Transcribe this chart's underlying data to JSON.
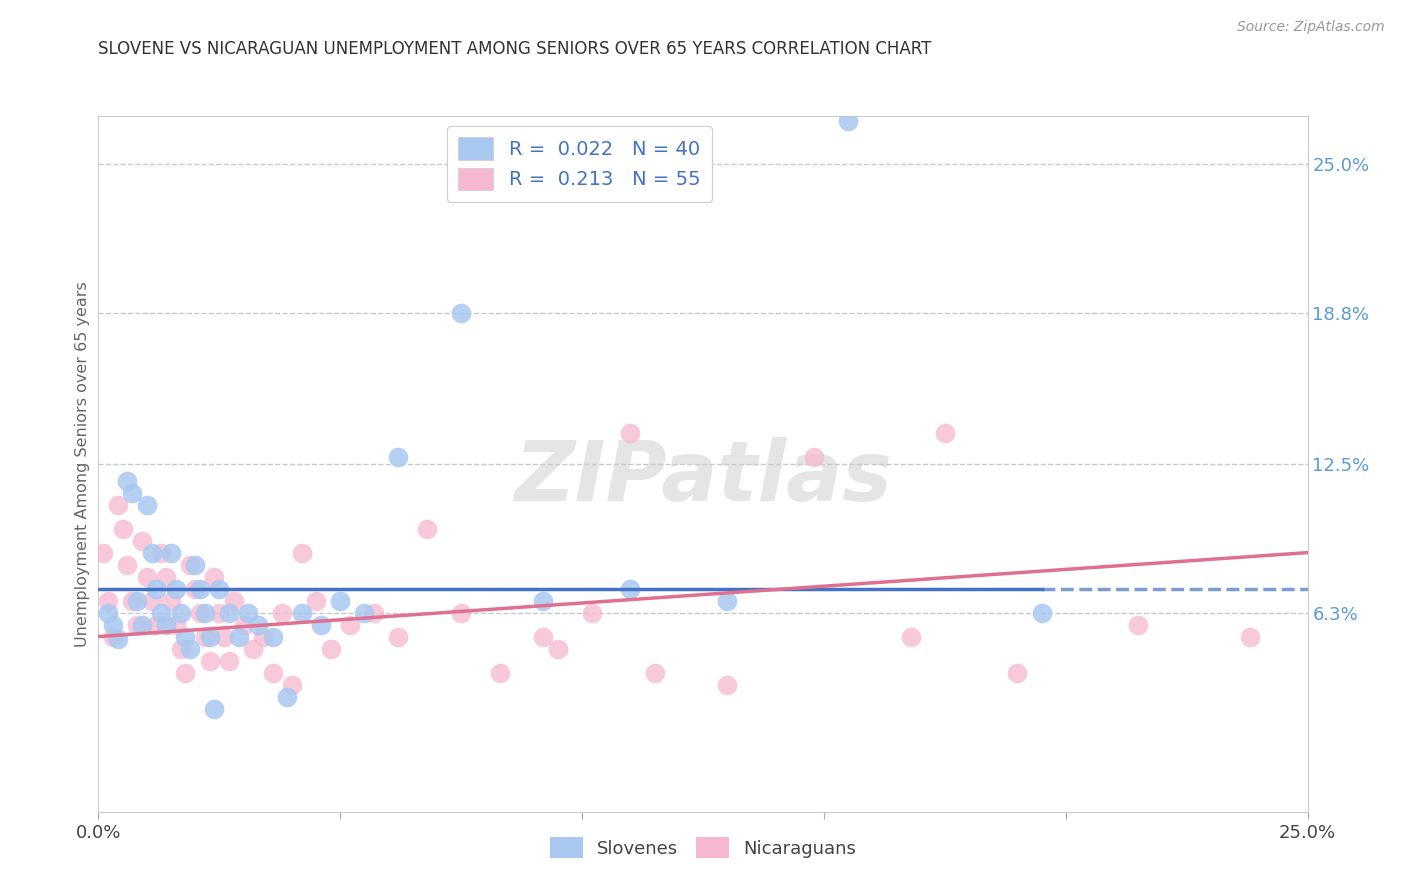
{
  "title": "SLOVENE VS NICARAGUAN UNEMPLOYMENT AMONG SENIORS OVER 65 YEARS CORRELATION CHART",
  "source": "Source: ZipAtlas.com",
  "ylabel": "Unemployment Among Seniors over 65 years",
  "xlim": [
    0.0,
    0.25
  ],
  "ylim": [
    -0.02,
    0.27
  ],
  "ytick_labels_right": [
    "25.0%",
    "18.8%",
    "12.5%",
    "6.3%"
  ],
  "ytick_values_right": [
    0.25,
    0.188,
    0.125,
    0.063
  ],
  "slovene_color": "#a8c8f0",
  "nicaraguan_color": "#f5b8d0",
  "slovene_R": 0.022,
  "slovene_N": 40,
  "nicaraguan_R": 0.213,
  "nicaraguan_N": 55,
  "legend_color_slovene": "#a8c8f0",
  "legend_color_nicaraguan": "#f5b8d0",
  "slovene_scatter_x": [
    0.002,
    0.003,
    0.004,
    0.006,
    0.007,
    0.008,
    0.009,
    0.01,
    0.011,
    0.012,
    0.013,
    0.014,
    0.015,
    0.016,
    0.017,
    0.018,
    0.019,
    0.02,
    0.021,
    0.022,
    0.023,
    0.024,
    0.025,
    0.027,
    0.029,
    0.031,
    0.033,
    0.036,
    0.039,
    0.042,
    0.046,
    0.05,
    0.055,
    0.062,
    0.075,
    0.092,
    0.11,
    0.13,
    0.155,
    0.195
  ],
  "slovene_scatter_y": [
    0.063,
    0.058,
    0.052,
    0.118,
    0.113,
    0.068,
    0.058,
    0.108,
    0.088,
    0.073,
    0.063,
    0.058,
    0.088,
    0.073,
    0.063,
    0.053,
    0.048,
    0.083,
    0.073,
    0.063,
    0.053,
    0.023,
    0.073,
    0.063,
    0.053,
    0.063,
    0.058,
    0.053,
    0.028,
    0.063,
    0.058,
    0.068,
    0.063,
    0.128,
    0.188,
    0.068,
    0.073,
    0.068,
    0.268,
    0.063
  ],
  "nicaraguan_scatter_x": [
    0.001,
    0.002,
    0.003,
    0.004,
    0.005,
    0.006,
    0.007,
    0.008,
    0.009,
    0.01,
    0.011,
    0.012,
    0.013,
    0.014,
    0.015,
    0.016,
    0.017,
    0.018,
    0.019,
    0.02,
    0.021,
    0.022,
    0.023,
    0.024,
    0.025,
    0.026,
    0.027,
    0.028,
    0.03,
    0.032,
    0.034,
    0.036,
    0.038,
    0.04,
    0.042,
    0.045,
    0.048,
    0.052,
    0.057,
    0.062,
    0.068,
    0.075,
    0.083,
    0.092,
    0.102,
    0.115,
    0.13,
    0.148,
    0.168,
    0.19,
    0.215,
    0.238,
    0.175,
    0.095,
    0.11
  ],
  "nicaraguan_scatter_y": [
    0.088,
    0.068,
    0.053,
    0.108,
    0.098,
    0.083,
    0.068,
    0.058,
    0.093,
    0.078,
    0.068,
    0.058,
    0.088,
    0.078,
    0.068,
    0.058,
    0.048,
    0.038,
    0.083,
    0.073,
    0.063,
    0.053,
    0.043,
    0.078,
    0.063,
    0.053,
    0.043,
    0.068,
    0.058,
    0.048,
    0.053,
    0.038,
    0.063,
    0.033,
    0.088,
    0.068,
    0.048,
    0.058,
    0.063,
    0.053,
    0.098,
    0.063,
    0.038,
    0.053,
    0.063,
    0.038,
    0.033,
    0.128,
    0.053,
    0.038,
    0.058,
    0.053,
    0.138,
    0.048,
    0.138
  ],
  "watermark_text": "ZIPatlas",
  "background_color": "#ffffff",
  "grid_color": "#bbbbbb",
  "title_color": "#333333",
  "axis_label_color": "#666666",
  "right_tick_color": "#5b9bd5",
  "legend_text_color": "#4472c4",
  "trend_blue_color": "#4472c4",
  "trend_pink_color": "#e07090"
}
